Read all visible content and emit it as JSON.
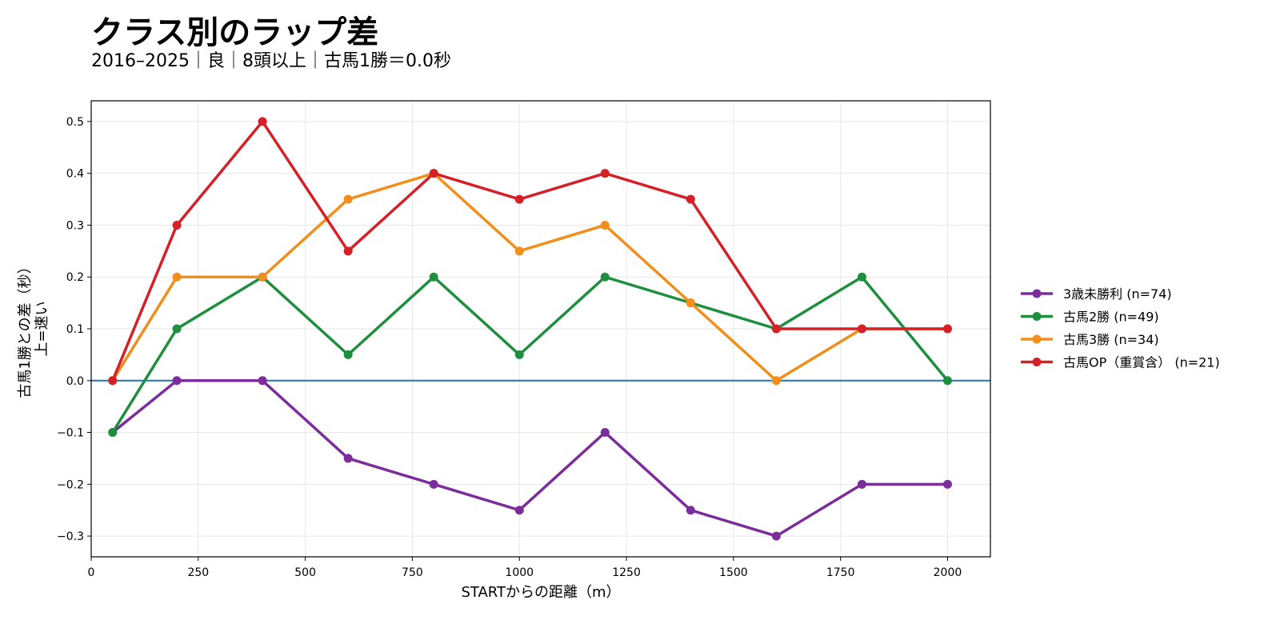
{
  "chart_data": {
    "type": "line",
    "title": "クラス別のラップ差",
    "subtitle": "2016–2025｜良｜8頭以上｜古馬1勝＝0.0秒",
    "xlabel": "STARTからの距離（m）",
    "ylabel_line1": "古馬1勝との差（秒）",
    "ylabel_line2": "上=速い",
    "xlim": [
      0,
      2100
    ],
    "ylim": [
      -0.34,
      0.54
    ],
    "xticks": [
      0,
      250,
      500,
      750,
      1000,
      1250,
      1500,
      1750,
      2000
    ],
    "yticks": [
      -0.3,
      -0.2,
      -0.1,
      0.0,
      0.1,
      0.2,
      0.3,
      0.4,
      0.5
    ],
    "ytick_labels": [
      "−0.3",
      "−0.2",
      "−0.1",
      "0.0",
      "0.1",
      "0.2",
      "0.3",
      "0.4",
      "0.5"
    ],
    "grid": true,
    "legend_position": "right",
    "reference_line": {
      "y": 0.0,
      "color": "#1f77b4"
    },
    "x": [
      50,
      200,
      400,
      600,
      800,
      1000,
      1200,
      1400,
      1600,
      1800,
      2000
    ],
    "series": [
      {
        "name": "3歳未勝利 (n=74)",
        "color": "#7b2d9b",
        "values": [
          -0.1,
          0.0,
          0.0,
          -0.15,
          -0.2,
          -0.25,
          -0.1,
          -0.25,
          -0.3,
          -0.2,
          -0.2
        ]
      },
      {
        "name": "古馬2勝 (n=49)",
        "color": "#1e8f3e",
        "values": [
          -0.1,
          0.1,
          0.2,
          0.05,
          0.2,
          0.05,
          0.2,
          0.15,
          0.1,
          0.2,
          0.0
        ]
      },
      {
        "name": "古馬3勝 (n=34)",
        "color": "#f28e1c",
        "values": [
          0.0,
          0.2,
          0.2,
          0.35,
          0.4,
          0.25,
          0.3,
          0.15,
          0.0,
          0.1,
          0.1
        ]
      },
      {
        "name": "古馬OP（重賞含） (n=21)",
        "color": "#d62027",
        "values": [
          0.0,
          0.3,
          0.5,
          0.25,
          0.4,
          0.35,
          0.4,
          0.35,
          0.1,
          0.1,
          0.1
        ]
      }
    ]
  }
}
